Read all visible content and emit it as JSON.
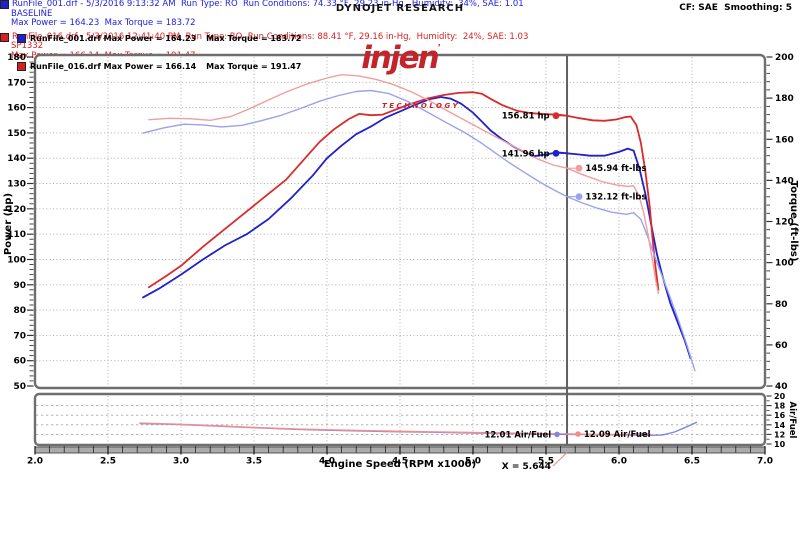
{
  "header": {
    "brand": "DYNOJET RESEARCH",
    "logo": {
      "name": "injen",
      "tm": "’",
      "sub": "TECHNOLOGY",
      "color": "#c4232b"
    },
    "cf": "CF: SAE  Smoothing: 5",
    "legend": [
      {
        "file_power": "RunFile_001.drf Max Power = 164.23",
        "torque": "Max Torque = 183.72",
        "color": "#2020cc"
      },
      {
        "file_power": "RunFile_016.drf Max Power = 166.14",
        "torque": "Max Torque = 191.47",
        "color": "#d92020"
      }
    ]
  },
  "chart_data": {
    "type": "line",
    "x_axis": {
      "label": "Engine Speed (RPM x1000)",
      "min": 2.0,
      "max": 7.0,
      "major": 0.5,
      "minor": 0.1
    },
    "power_axis": {
      "label": "Power (hp)",
      "min": 50,
      "max": 180,
      "major": 10,
      "minor": 2
    },
    "torque_axis": {
      "label": "Torque (ft-lbs)",
      "min": 40,
      "max": 200,
      "major": 20,
      "minor": 4
    },
    "af_axis": {
      "label": "Air/Fuel",
      "min": 10,
      "max": 20,
      "major": 2,
      "minor": 1
    },
    "cursor": {
      "x": 5.644,
      "label": "X = 5.644"
    },
    "grid": {
      "color": "#a6a6a6",
      "on": true
    },
    "series": [
      {
        "name": "power-baseline",
        "axis": "power",
        "color": "#2020cc",
        "width": 1.8,
        "points": [
          [
            2.74,
            85
          ],
          [
            2.85,
            88.5
          ],
          [
            3.0,
            94
          ],
          [
            3.15,
            100
          ],
          [
            3.3,
            105.5
          ],
          [
            3.45,
            110
          ],
          [
            3.6,
            116
          ],
          [
            3.75,
            124
          ],
          [
            3.9,
            133
          ],
          [
            4.0,
            140
          ],
          [
            4.1,
            145
          ],
          [
            4.2,
            149.5
          ],
          [
            4.3,
            152.5
          ],
          [
            4.4,
            156
          ],
          [
            4.5,
            158.5
          ],
          [
            4.6,
            161
          ],
          [
            4.7,
            163.3
          ],
          [
            4.78,
            164.2
          ],
          [
            4.85,
            163.5
          ],
          [
            4.92,
            161.5
          ],
          [
            5.0,
            158
          ],
          [
            5.06,
            154.5
          ],
          [
            5.12,
            151
          ],
          [
            5.2,
            147.5
          ],
          [
            5.28,
            144.5
          ],
          [
            5.35,
            142.5
          ],
          [
            5.42,
            140.8
          ],
          [
            5.5,
            141.5
          ],
          [
            5.58,
            142.3
          ],
          [
            5.644,
            141.96
          ],
          [
            5.72,
            141.5
          ],
          [
            5.8,
            141
          ],
          [
            5.9,
            141
          ],
          [
            6.0,
            142.5
          ],
          [
            6.06,
            143.8
          ],
          [
            6.1,
            143
          ],
          [
            6.14,
            136
          ],
          [
            6.18,
            126
          ],
          [
            6.22,
            114
          ],
          [
            6.26,
            102
          ],
          [
            6.3,
            93
          ],
          [
            6.35,
            83
          ],
          [
            6.4,
            75.5
          ],
          [
            6.45,
            68
          ],
          [
            6.49,
            61
          ]
        ]
      },
      {
        "name": "power-sp1332",
        "axis": "power",
        "color": "#d92b2b",
        "width": 1.8,
        "points": [
          [
            2.78,
            89
          ],
          [
            2.9,
            93.5
          ],
          [
            3.0,
            97.5
          ],
          [
            3.15,
            105
          ],
          [
            3.3,
            112
          ],
          [
            3.45,
            119
          ],
          [
            3.6,
            126
          ],
          [
            3.72,
            131.5
          ],
          [
            3.85,
            140
          ],
          [
            3.95,
            146.5
          ],
          [
            4.05,
            151.5
          ],
          [
            4.15,
            155.5
          ],
          [
            4.22,
            157.5
          ],
          [
            4.3,
            157
          ],
          [
            4.38,
            157.2
          ],
          [
            4.46,
            159
          ],
          [
            4.55,
            161
          ],
          [
            4.68,
            163.5
          ],
          [
            4.8,
            165
          ],
          [
            4.9,
            165.8
          ],
          [
            5.0,
            166.1
          ],
          [
            5.06,
            165.5
          ],
          [
            5.12,
            163.5
          ],
          [
            5.2,
            161
          ],
          [
            5.3,
            158.8
          ],
          [
            5.4,
            157.8
          ],
          [
            5.5,
            157.4
          ],
          [
            5.58,
            157.2
          ],
          [
            5.644,
            156.81
          ],
          [
            5.73,
            155.8
          ],
          [
            5.82,
            155
          ],
          [
            5.9,
            154.8
          ],
          [
            5.98,
            155.3
          ],
          [
            6.04,
            156.2
          ],
          [
            6.08,
            156.5
          ],
          [
            6.12,
            153
          ],
          [
            6.15,
            146
          ],
          [
            6.18,
            135
          ],
          [
            6.21,
            121
          ],
          [
            6.23,
            108
          ],
          [
            6.25,
            97
          ],
          [
            6.27,
            88
          ]
        ]
      },
      {
        "name": "torque-baseline",
        "axis": "torque",
        "color": "#9aa2ec",
        "width": 1.4,
        "points": [
          [
            2.74,
            163
          ],
          [
            2.88,
            165.5
          ],
          [
            3.02,
            167.3
          ],
          [
            3.15,
            167
          ],
          [
            3.28,
            166
          ],
          [
            3.42,
            166.8
          ],
          [
            3.55,
            169
          ],
          [
            3.68,
            171.5
          ],
          [
            3.82,
            175
          ],
          [
            3.95,
            178.5
          ],
          [
            4.08,
            181.3
          ],
          [
            4.2,
            183.2
          ],
          [
            4.3,
            183.7
          ],
          [
            4.42,
            182.3
          ],
          [
            4.55,
            178.5
          ],
          [
            4.68,
            173.5
          ],
          [
            4.82,
            168
          ],
          [
            4.95,
            163
          ],
          [
            5.05,
            158.5
          ],
          [
            5.15,
            153.5
          ],
          [
            5.25,
            148.5
          ],
          [
            5.35,
            144
          ],
          [
            5.45,
            139.5
          ],
          [
            5.55,
            135.5
          ],
          [
            5.644,
            132.12
          ],
          [
            5.75,
            129
          ],
          [
            5.85,
            126.5
          ],
          [
            5.95,
            124.5
          ],
          [
            6.05,
            123.5
          ],
          [
            6.1,
            124.3
          ],
          [
            6.15,
            121
          ],
          [
            6.2,
            112
          ],
          [
            6.26,
            100
          ],
          [
            6.33,
            87
          ],
          [
            6.4,
            73.5
          ],
          [
            6.46,
            61
          ],
          [
            6.52,
            47.5
          ]
        ]
      },
      {
        "name": "torque-sp1332",
        "axis": "torque",
        "color": "#f09e9e",
        "width": 1.4,
        "points": [
          [
            2.78,
            169.5
          ],
          [
            2.92,
            170.2
          ],
          [
            3.06,
            170
          ],
          [
            3.2,
            169.2
          ],
          [
            3.34,
            171
          ],
          [
            3.46,
            174.5
          ],
          [
            3.58,
            178.5
          ],
          [
            3.72,
            183
          ],
          [
            3.86,
            186.8
          ],
          [
            4.0,
            189.8
          ],
          [
            4.1,
            191.4
          ],
          [
            4.22,
            190.8
          ],
          [
            4.34,
            189
          ],
          [
            4.46,
            186.5
          ],
          [
            4.58,
            183
          ],
          [
            4.7,
            178.8
          ],
          [
            4.82,
            174
          ],
          [
            4.95,
            169
          ],
          [
            5.08,
            164
          ],
          [
            5.2,
            159.5
          ],
          [
            5.32,
            155
          ],
          [
            5.44,
            150.5
          ],
          [
            5.55,
            147.5
          ],
          [
            5.644,
            145.94
          ],
          [
            5.76,
            142.5
          ],
          [
            5.88,
            139.5
          ],
          [
            5.98,
            137.8
          ],
          [
            6.06,
            137
          ],
          [
            6.1,
            137.4
          ],
          [
            6.14,
            132
          ],
          [
            6.17,
            124
          ],
          [
            6.2,
            113
          ],
          [
            6.23,
            101
          ],
          [
            6.25,
            92
          ],
          [
            6.27,
            85
          ]
        ]
      },
      {
        "name": "af-baseline",
        "axis": "af",
        "color": "#7e88e0",
        "width": 1.4,
        "points": [
          [
            2.72,
            14.25
          ],
          [
            2.95,
            14.1
          ],
          [
            3.2,
            13.8
          ],
          [
            3.5,
            13.4
          ],
          [
            3.8,
            13.05
          ],
          [
            4.1,
            12.8
          ],
          [
            4.4,
            12.6
          ],
          [
            4.7,
            12.45
          ],
          [
            5.0,
            12.3
          ],
          [
            5.3,
            12.15
          ],
          [
            5.5,
            12.05
          ],
          [
            5.644,
            12.01
          ],
          [
            5.85,
            11.95
          ],
          [
            6.05,
            11.9
          ],
          [
            6.2,
            11.8
          ],
          [
            6.3,
            11.9
          ],
          [
            6.38,
            12.5
          ],
          [
            6.45,
            13.4
          ],
          [
            6.53,
            14.5
          ]
        ]
      },
      {
        "name": "af-sp1332",
        "axis": "af",
        "color": "#f28c8c",
        "width": 1.4,
        "points": [
          [
            2.72,
            14.35
          ],
          [
            2.95,
            14.15
          ],
          [
            3.2,
            13.85
          ],
          [
            3.5,
            13.45
          ],
          [
            3.8,
            13.1
          ],
          [
            4.1,
            12.9
          ],
          [
            4.4,
            12.7
          ],
          [
            4.7,
            12.55
          ],
          [
            5.0,
            12.4
          ],
          [
            5.3,
            12.25
          ],
          [
            5.5,
            12.15
          ],
          [
            5.644,
            12.09
          ],
          [
            5.85,
            12.0
          ],
          [
            6.0,
            11.95
          ],
          [
            6.1,
            12.0
          ],
          [
            6.17,
            12.25
          ],
          [
            6.23,
            11.9
          ]
        ]
      }
    ],
    "annotations": [
      {
        "text": "156.81 hp",
        "value": 156.81,
        "axis": "power",
        "side": "left",
        "color": "#d92b2b"
      },
      {
        "text": "141.96 hp",
        "value": 141.96,
        "axis": "power",
        "side": "left",
        "color": "#2020cc"
      },
      {
        "text": "145.94 ft-lbs",
        "value": 145.94,
        "axis": "torque",
        "side": "right",
        "color": "#f09e9e"
      },
      {
        "text": "132.12 ft-lbs",
        "value": 132.12,
        "axis": "torque",
        "side": "right",
        "color": "#9aa2ec"
      },
      {
        "text": "12.01 Air/Fuel",
        "value": 12.01,
        "axis": "af",
        "side": "left",
        "color": "#7e88e0"
      },
      {
        "text": "12.09 Air/Fuel",
        "value": 12.09,
        "axis": "af",
        "side": "right",
        "color": "#f28c8c"
      }
    ]
  },
  "footer": {
    "runs": [
      {
        "color": "#2020dd",
        "line1": "RunFile_001.drf - 5/3/2016 9:13:32 AM  Run Type: RO  Run Conditions: 74.33 °F, 29.23 in-Hg,  Humidity:  34%, SAE: 1.01",
        "line2": "BASELINE",
        "line3": "Max Power = 164.23  Max Torque = 183.72"
      },
      {
        "color": "#d92020",
        "line1": "RunFile_016.drf - 5/3/2016 12:41:40 PM  Run Type: RO  Run Conditions: 88.41 °F, 29.16 in-Hg,  Humidity:  24%, SAE: 1.03",
        "line2": "SP1332",
        "line3": "Max Power = 166.14  Max Torque = 191.47"
      }
    ]
  }
}
